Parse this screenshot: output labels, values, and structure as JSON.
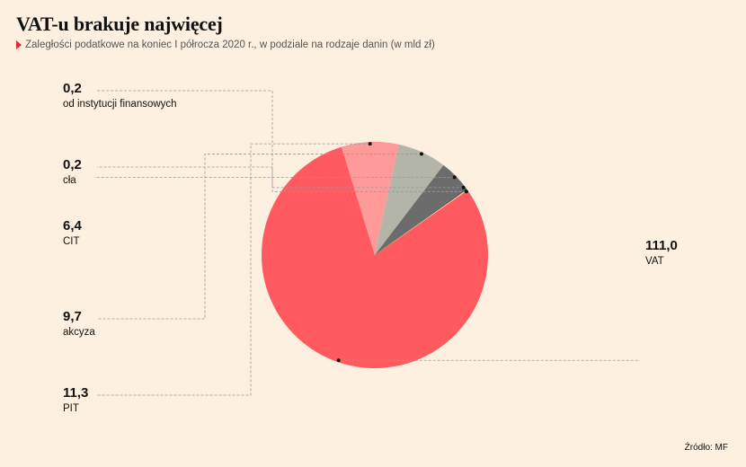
{
  "title": "VAT-u brakuje najwięcej",
  "subtitle": "Zaległości podatkowe na koniec I półrocza 2020 r., w podziale na rodzaje danin (w mld zł)",
  "source": "Źródło: MF",
  "chart_data": {
    "type": "pie",
    "slices": [
      {
        "label": "VAT",
        "value": 111.0,
        "value_text": "111,0",
        "color": "#ff5a5f"
      },
      {
        "label": "PIT",
        "value": 11.3,
        "value_text": "11,3",
        "color": "#ff9a9a"
      },
      {
        "label": "akcyza",
        "value": 9.7,
        "value_text": "9,7",
        "color": "#b3b5a8"
      },
      {
        "label": "CIT",
        "value": 6.4,
        "value_text": "6,4",
        "color": "#6c6c6c"
      },
      {
        "label": "cła",
        "value": 0.2,
        "value_text": "0,2",
        "color": "#3a3a3a"
      },
      {
        "label": "od instytucji finansowych",
        "value": 0.2,
        "value_text": "0,2",
        "color": "#f4c6a8"
      }
    ]
  }
}
